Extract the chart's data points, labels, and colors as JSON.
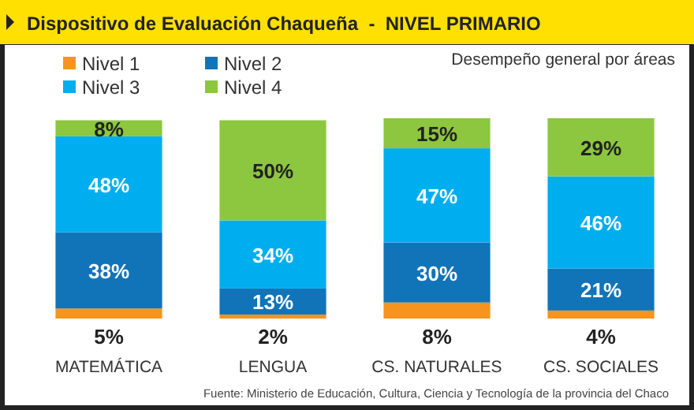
{
  "chart_data": {
    "type": "bar",
    "stacked": true,
    "title": "Dispositivo de Evaluación Chaqueña  -  NIVEL PRIMARIO",
    "subtitle": "Desempeño general por áreas",
    "categories": [
      "MATEMÁTICA",
      "LENGUA",
      "CS. NATURALES",
      "CS. SOCIALES"
    ],
    "series": [
      {
        "name": "Nivel 1",
        "color": "#f7941d",
        "values": [
          5,
          2,
          8,
          4
        ],
        "value_labels": [
          "5%",
          "2%",
          "8%",
          "4%"
        ]
      },
      {
        "name": "Nivel 2",
        "color": "#1174b9",
        "values": [
          38,
          13,
          30,
          21
        ],
        "value_labels": [
          "38%",
          "13%",
          "30%",
          "21%"
        ]
      },
      {
        "name": "Nivel 3",
        "color": "#00aeef",
        "values": [
          48,
          34,
          47,
          46
        ],
        "value_labels": [
          "48%",
          "34%",
          "47%",
          "46%"
        ]
      },
      {
        "name": "Nivel 4",
        "color": "#8dc63f",
        "values": [
          8,
          50,
          15,
          29
        ],
        "value_labels": [
          "8%",
          "50%",
          "15%",
          "29%"
        ]
      }
    ],
    "legend": "top left",
    "annotations": [
      "Fuente: Ministerio de Educación, Cultura, Ciencia y Tecnología de la provincia del Chaco"
    ]
  }
}
